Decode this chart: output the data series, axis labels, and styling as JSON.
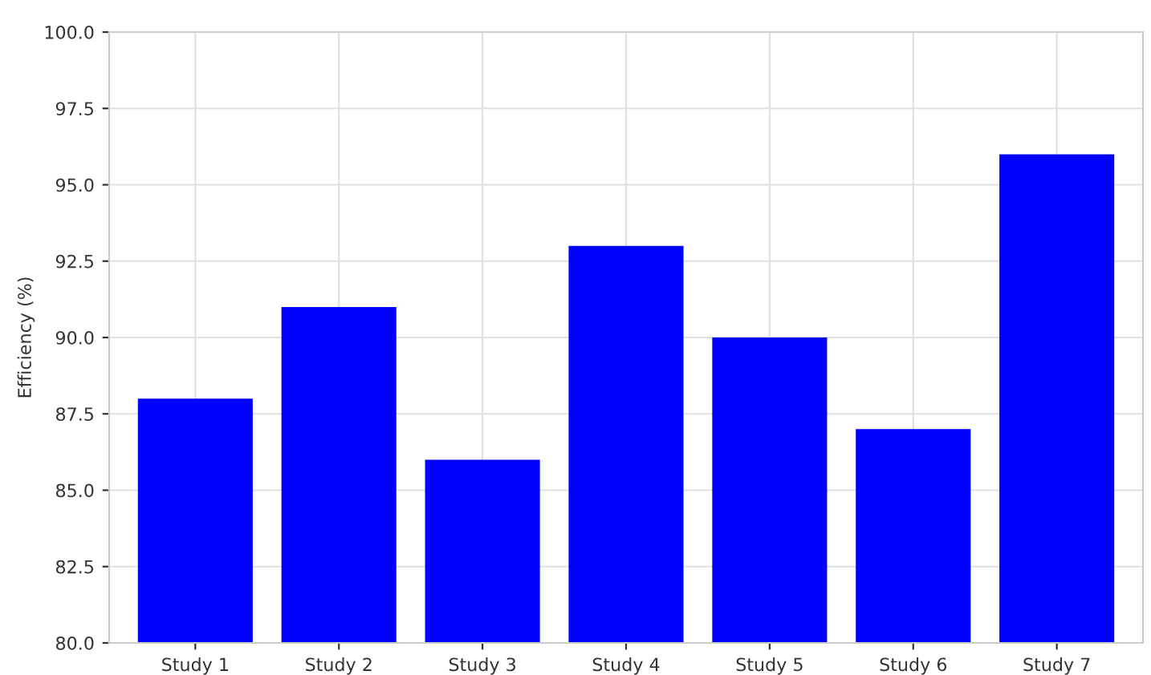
{
  "chart_data": {
    "type": "bar",
    "ylabel": "Efficiency (%)",
    "categories": [
      "Study 1",
      "Study 2",
      "Study 3",
      "Study 4",
      "Study 5",
      "Study 6",
      "Study 7"
    ],
    "values": [
      88,
      91,
      86,
      93,
      90,
      87,
      96
    ],
    "color": "#0000ff",
    "ylim": [
      80,
      100
    ],
    "yticks": [
      {
        "value": 80,
        "label": "80.0"
      },
      {
        "value": 82.5,
        "label": "82.5"
      },
      {
        "value": 85,
        "label": "85.0"
      },
      {
        "value": 87.5,
        "label": "87.5"
      },
      {
        "value": 90,
        "label": "90.0"
      },
      {
        "value": 92.5,
        "label": "92.5"
      },
      {
        "value": 95,
        "label": "95.0"
      },
      {
        "value": 97.5,
        "label": "97.5"
      },
      {
        "value": 100,
        "label": "100.0"
      }
    ],
    "grid": true
  }
}
